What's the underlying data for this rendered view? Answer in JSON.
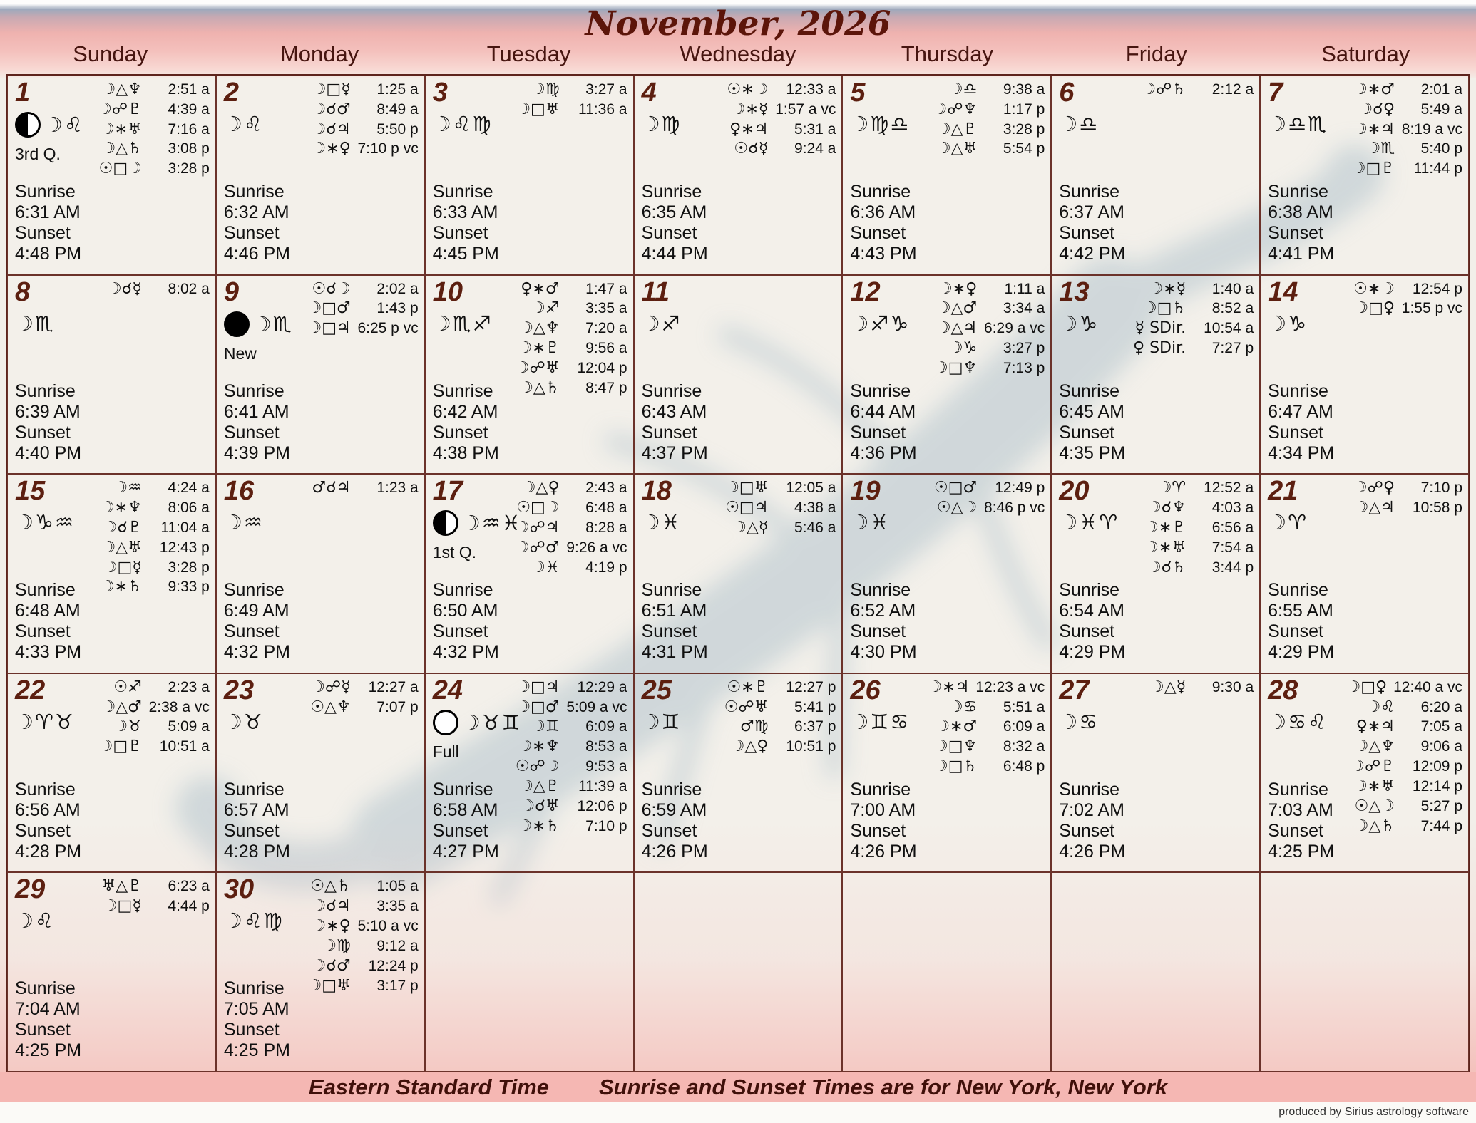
{
  "title": "November, 2026",
  "weekdays": [
    "Sunday",
    "Monday",
    "Tuesday",
    "Wednesday",
    "Thursday",
    "Friday",
    "Saturday"
  ],
  "labels": {
    "sunrise": "Sunrise",
    "sunset": "Sunset"
  },
  "footer": {
    "timezone": "Eastern Standard Time",
    "location_note": "Sunrise and Sunset Times are for New York, New York",
    "credit": "produced by Sirius astrology software"
  },
  "colors": {
    "accent": "#5c150a",
    "grid_line": "#5d241d",
    "pink_band": "#f5b7b3",
    "blue_band": "#9ea9bc",
    "artwork": "#a9bcc8"
  },
  "days": [
    {
      "num": 1,
      "sign": "☽♌",
      "phase": "3rd Q.",
      "icon": "third-quarter",
      "sunrise": "6:31 AM",
      "sunset": "4:48 PM",
      "aspects": [
        [
          "☽△♆",
          "2:51 a"
        ],
        [
          "☽☍♇",
          "4:39 a"
        ],
        [
          "☽∗♅",
          "7:16 a"
        ],
        [
          "☽△♄",
          "3:08 p"
        ],
        [
          "☉□☽",
          "3:28 p"
        ]
      ]
    },
    {
      "num": 2,
      "sign": "☽♌",
      "phase": null,
      "icon": null,
      "sunrise": "6:32 AM",
      "sunset": "4:46 PM",
      "aspects": [
        [
          "☽□☿",
          "1:25 a"
        ],
        [
          "☽☌♂",
          "8:49 a"
        ],
        [
          "☽☌♃",
          "5:50 p"
        ],
        [
          "☽∗♀",
          "7:10 p vc"
        ]
      ]
    },
    {
      "num": 3,
      "sign": "☽♌♍",
      "phase": null,
      "icon": null,
      "sunrise": "6:33 AM",
      "sunset": "4:45 PM",
      "aspects": [
        [
          "☽♍",
          "3:27 a"
        ],
        [
          "☽□♅",
          "11:36 a"
        ]
      ]
    },
    {
      "num": 4,
      "sign": "☽♍",
      "phase": null,
      "icon": null,
      "sunrise": "6:35 AM",
      "sunset": "4:44 PM",
      "aspects": [
        [
          "☉∗☽",
          "12:33 a"
        ],
        [
          "☽∗☿",
          "1:57 a vc"
        ],
        [
          "♀∗♃",
          "5:31 a"
        ],
        [
          "☉☌☿",
          "9:24 a"
        ]
      ]
    },
    {
      "num": 5,
      "sign": "☽♍♎",
      "phase": null,
      "icon": null,
      "sunrise": "6:36 AM",
      "sunset": "4:43 PM",
      "aspects": [
        [
          "☽♎",
          "9:38 a"
        ],
        [
          "☽☍♆",
          "1:17 p"
        ],
        [
          "☽△♇",
          "3:28 p"
        ],
        [
          "☽△♅",
          "5:54 p"
        ]
      ]
    },
    {
      "num": 6,
      "sign": "☽♎",
      "phase": null,
      "icon": null,
      "sunrise": "6:37 AM",
      "sunset": "4:42 PM",
      "aspects": [
        [
          "☽☍♄",
          "2:12 a"
        ]
      ]
    },
    {
      "num": 7,
      "sign": "☽♎♏",
      "phase": null,
      "icon": null,
      "sunrise": "6:38 AM",
      "sunset": "4:41 PM",
      "aspects": [
        [
          "☽∗♂",
          "2:01 a"
        ],
        [
          "☽☌♀",
          "5:49 a"
        ],
        [
          "☽∗♃",
          "8:19 a vc"
        ],
        [
          "☽♏",
          "5:40 p"
        ],
        [
          "☽□♇",
          "11:44 p"
        ]
      ]
    },
    {
      "num": 8,
      "sign": "☽♏",
      "phase": null,
      "icon": null,
      "sunrise": "6:39 AM",
      "sunset": "4:40 PM",
      "aspects": [
        [
          "☽☌☿",
          "8:02 a"
        ]
      ]
    },
    {
      "num": 9,
      "sign": "☽♏",
      "phase": "New",
      "icon": "new",
      "sunrise": "6:41 AM",
      "sunset": "4:39 PM",
      "aspects": [
        [
          "☉☌☽",
          "2:02 a"
        ],
        [
          "☽□♂",
          "1:43 p"
        ],
        [
          "☽□♃",
          "6:25 p vc"
        ]
      ]
    },
    {
      "num": 10,
      "sign": "☽♏♐",
      "phase": null,
      "icon": null,
      "sunrise": "6:42 AM",
      "sunset": "4:38 PM",
      "aspects": [
        [
          "♀∗♂",
          "1:47 a"
        ],
        [
          "☽♐",
          "3:35 a"
        ],
        [
          "☽△♆",
          "7:20 a"
        ],
        [
          "☽∗♇",
          "9:56 a"
        ],
        [
          "☽☍♅",
          "12:04 p"
        ],
        [
          "☽△♄",
          "8:47 p"
        ]
      ]
    },
    {
      "num": 11,
      "sign": "☽♐",
      "phase": null,
      "icon": null,
      "sunrise": "6:43 AM",
      "sunset": "4:37 PM",
      "aspects": []
    },
    {
      "num": 12,
      "sign": "☽♐♑",
      "phase": null,
      "icon": null,
      "sunrise": "6:44 AM",
      "sunset": "4:36 PM",
      "aspects": [
        [
          "☽∗♀",
          "1:11 a"
        ],
        [
          "☽△♂",
          "3:34 a"
        ],
        [
          "☽△♃",
          "6:29 a vc"
        ],
        [
          "☽♑",
          "3:27 p"
        ],
        [
          "☽□♆",
          "7:13 p"
        ]
      ]
    },
    {
      "num": 13,
      "sign": "☽♑",
      "phase": null,
      "icon": null,
      "sunrise": "6:45 AM",
      "sunset": "4:35 PM",
      "aspects": [
        [
          "☽∗☿",
          "1:40 a"
        ],
        [
          "☽□♄",
          "8:52 a"
        ],
        [
          "☿ SDir.",
          "10:54 a"
        ],
        [
          "♀ SDir.",
          "7:27 p"
        ]
      ]
    },
    {
      "num": 14,
      "sign": "☽♑",
      "phase": null,
      "icon": null,
      "sunrise": "6:47 AM",
      "sunset": "4:34 PM",
      "aspects": [
        [
          "☉∗☽",
          "12:54 p"
        ],
        [
          "☽□♀",
          "1:55 p vc"
        ]
      ]
    },
    {
      "num": 15,
      "sign": "☽♑♒",
      "phase": null,
      "icon": null,
      "sunrise": "6:48 AM",
      "sunset": "4:33 PM",
      "aspects": [
        [
          "☽♒",
          "4:24 a"
        ],
        [
          "☽∗♆",
          "8:06 a"
        ],
        [
          "☽☌♇",
          "11:04 a"
        ],
        [
          "☽△♅",
          "12:43 p"
        ],
        [
          "☽□☿",
          "3:28 p"
        ],
        [
          "☽∗♄",
          "9:33 p"
        ]
      ]
    },
    {
      "num": 16,
      "sign": "☽♒",
      "phase": null,
      "icon": null,
      "sunrise": "6:49 AM",
      "sunset": "4:32 PM",
      "aspects": [
        [
          "♂☌♃",
          "1:23 a"
        ]
      ]
    },
    {
      "num": 17,
      "sign": "☽♒♓",
      "phase": "1st Q.",
      "icon": "first-quarter",
      "sunrise": "6:50 AM",
      "sunset": "4:32 PM",
      "aspects": [
        [
          "☽△♀",
          "2:43 a"
        ],
        [
          "☉□☽",
          "6:48 a"
        ],
        [
          "☽☍♃",
          "8:28 a"
        ],
        [
          "☽☍♂",
          "9:26 a vc"
        ],
        [
          "☽♓",
          "4:19 p"
        ]
      ]
    },
    {
      "num": 18,
      "sign": "☽♓",
      "phase": null,
      "icon": null,
      "sunrise": "6:51 AM",
      "sunset": "4:31 PM",
      "aspects": [
        [
          "☽□♅",
          "12:05 a"
        ],
        [
          "☉□♃",
          "4:38 a"
        ],
        [
          "☽△☿",
          "5:46 a"
        ]
      ]
    },
    {
      "num": 19,
      "sign": "☽♓",
      "phase": null,
      "icon": null,
      "sunrise": "6:52 AM",
      "sunset": "4:30 PM",
      "aspects": [
        [
          "☉□♂",
          "12:49 p"
        ],
        [
          "☉△☽",
          "8:46 p vc"
        ]
      ]
    },
    {
      "num": 20,
      "sign": "☽♓♈",
      "phase": null,
      "icon": null,
      "sunrise": "6:54 AM",
      "sunset": "4:29 PM",
      "aspects": [
        [
          "☽♈",
          "12:52 a"
        ],
        [
          "☽☌♆",
          "4:03 a"
        ],
        [
          "☽∗♇",
          "6:56 a"
        ],
        [
          "☽∗♅",
          "7:54 a"
        ],
        [
          "☽☌♄",
          "3:44 p"
        ]
      ]
    },
    {
      "num": 21,
      "sign": "☽♈",
      "phase": null,
      "icon": null,
      "sunrise": "6:55 AM",
      "sunset": "4:29 PM",
      "aspects": [
        [
          "☽☍♀",
          "7:10 p"
        ],
        [
          "☽△♃",
          "10:58 p"
        ]
      ]
    },
    {
      "num": 22,
      "sign": "☽♈♉",
      "phase": null,
      "icon": null,
      "sunrise": "6:56 AM",
      "sunset": "4:28 PM",
      "aspects": [
        [
          "☉♐",
          "2:23 a"
        ],
        [
          "☽△♂",
          "2:38 a vc"
        ],
        [
          "☽♉",
          "5:09 a"
        ],
        [
          "☽□♇",
          "10:51 a"
        ]
      ]
    },
    {
      "num": 23,
      "sign": "☽♉",
      "phase": null,
      "icon": null,
      "sunrise": "6:57 AM",
      "sunset": "4:28 PM",
      "aspects": [
        [
          "☽☍☿",
          "12:27 a"
        ],
        [
          "☉△♆",
          "7:07 p"
        ]
      ]
    },
    {
      "num": 24,
      "sign": "☽♉♊",
      "phase": "Full",
      "icon": "full",
      "sunrise": "6:58 AM",
      "sunset": "4:27 PM",
      "aspects": [
        [
          "☽□♃",
          "12:29 a"
        ],
        [
          "☽□♂",
          "5:09 a vc"
        ],
        [
          "☽♊",
          "6:09 a"
        ],
        [
          "☽∗♆",
          "8:53 a"
        ],
        [
          "☉☍☽",
          "9:53 a"
        ],
        [
          "☽△♇",
          "11:39 a"
        ],
        [
          "☽☌♅",
          "12:06 p"
        ],
        [
          "☽∗♄",
          "7:10 p"
        ]
      ]
    },
    {
      "num": 25,
      "sign": "☽♊",
      "phase": null,
      "icon": null,
      "sunrise": "6:59 AM",
      "sunset": "4:26 PM",
      "aspects": [
        [
          "☉∗♇",
          "12:27 p"
        ],
        [
          "☉☍♅",
          "5:41 p"
        ],
        [
          "♂♍",
          "6:37 p"
        ],
        [
          "☽△♀",
          "10:51 p"
        ]
      ]
    },
    {
      "num": 26,
      "sign": "☽♊♋",
      "phase": null,
      "icon": null,
      "sunrise": "7:00 AM",
      "sunset": "4:26 PM",
      "aspects": [
        [
          "☽∗♃",
          "12:23 a vc"
        ],
        [
          "☽♋",
          "5:51 a"
        ],
        [
          "☽∗♂",
          "6:09 a"
        ],
        [
          "☽□♆",
          "8:32 a"
        ],
        [
          "☽□♄",
          "6:48 p"
        ]
      ]
    },
    {
      "num": 27,
      "sign": "☽♋",
      "phase": null,
      "icon": null,
      "sunrise": "7:02 AM",
      "sunset": "4:26 PM",
      "aspects": [
        [
          "☽△☿",
          "9:30 a"
        ]
      ]
    },
    {
      "num": 28,
      "sign": "☽♋♌",
      "phase": null,
      "icon": null,
      "sunrise": "7:03 AM",
      "sunset": "4:25 PM",
      "aspects": [
        [
          "☽□♀",
          "12:40 a vc"
        ],
        [
          "☽♌",
          "6:20 a"
        ],
        [
          "♀∗♃",
          "7:05 a"
        ],
        [
          "☽△♆",
          "9:06 a"
        ],
        [
          "☽☍♇",
          "12:09 p"
        ],
        [
          "☽∗♅",
          "12:14 p"
        ],
        [
          "☉△☽",
          "5:27 p"
        ],
        [
          "☽△♄",
          "7:44 p"
        ]
      ]
    },
    {
      "num": 29,
      "sign": "☽♌",
      "phase": null,
      "icon": null,
      "sunrise": "7:04 AM",
      "sunset": "4:25 PM",
      "aspects": [
        [
          "♅△♇",
          "6:23 a"
        ],
        [
          "☽□☿",
          "4:44 p"
        ]
      ]
    },
    {
      "num": 30,
      "sign": "☽♌♍",
      "phase": null,
      "icon": null,
      "sunrise": "7:05 AM",
      "sunset": "4:25 PM",
      "aspects": [
        [
          "☉△♄",
          "1:05 a"
        ],
        [
          "☽☌♃",
          "3:35 a"
        ],
        [
          "☽∗♀",
          "5:10 a vc"
        ],
        [
          "☽♍",
          "9:12 a"
        ],
        [
          "☽☌♂",
          "12:24 p"
        ],
        [
          "☽□♅",
          "3:17 p"
        ]
      ]
    }
  ]
}
